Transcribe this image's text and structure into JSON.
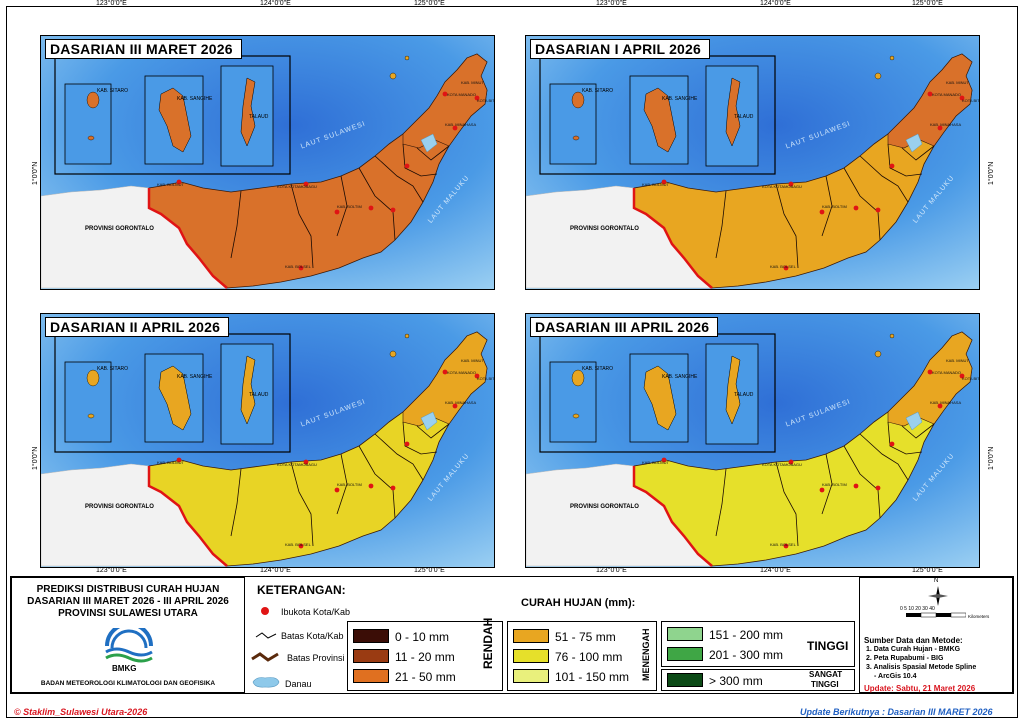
{
  "panels": [
    {
      "title": "DASARIAN III MARET 2026",
      "fill": "#d9712a",
      "fill_east": "#d9712a"
    },
    {
      "title": "DASARIAN I APRIL 2026",
      "fill": "#e8a621",
      "fill_east": "#d9712a"
    },
    {
      "title": "DASARIAN II APRIL 2026",
      "fill": "#e8d425",
      "fill_east": "#e8a621"
    },
    {
      "title": "DASARIAN III APRIL 2026",
      "fill": "#e6e02a",
      "fill_east": "#e8a621"
    }
  ],
  "inset_labels": [
    "KAB. SITARO",
    "KAB. SANGIHE",
    "TALAUD"
  ],
  "map_labels": {
    "laut_sulawesi": "LAUT SULAWESI",
    "laut_maluku": "LAUT MALUKU",
    "gorontalo": "PROVINSI GORONTALO",
    "bolmut": "KAB. BOLMUT",
    "bolsel": "KAB. BOLSEL",
    "boltim": "KAB. BOLTIM",
    "kotamobagu": "KOTA KOTAMOBAGU",
    "manado": "KOTA MANADO",
    "bitung": "KOTA BITUNG",
    "minahasa": "KAB. MINAHASA",
    "minut": "KAB. MINUT"
  },
  "coords": {
    "lon": [
      "123°0'0\"E",
      "124°0'0\"E",
      "125°0'0\"E"
    ],
    "lat": "1°0'0\"N"
  },
  "title_block": {
    "line1": "PREDIKSI DISTRIBUSI CURAH HUJAN",
    "line2": "DASARIAN III MARET 2026 - III APRIL 2026",
    "line3": "PROVINSI SULAWESI UTARA",
    "logo_text": "BMKG",
    "agency": "BADAN METEOROLOGI KLIMATOLOGI DAN GEOFISIKA"
  },
  "legend": {
    "heading": "KETERANGAN:",
    "symbols": [
      "Ibukota Kota/Kab",
      "Batas Kota/Kab",
      "Batas Provinsi",
      "Danau"
    ],
    "rain_heading": "CURAH HUJAN (mm):",
    "groups": {
      "rendah": "RENDAH",
      "menengah": "MENENGAH",
      "tinggi": "TINGGI",
      "sangat_tinggi_1": "SANGAT",
      "sangat_tinggi_2": "TINGGI"
    },
    "classes": [
      {
        "label": "0 - 10 mm",
        "color": "#3b0d06"
      },
      {
        "label": "11 - 20 mm",
        "color": "#9a3b12"
      },
      {
        "label": "21 - 50 mm",
        "color": "#e07020"
      },
      {
        "label": "51 - 75 mm",
        "color": "#e8a621"
      },
      {
        "label": "76 - 100 mm",
        "color": "#e6e02a"
      },
      {
        "label": "101 - 150 mm",
        "color": "#e9f07c"
      },
      {
        "label": "151 - 200 mm",
        "color": "#8fd48e"
      },
      {
        "label": "201 - 300 mm",
        "color": "#3fa645"
      },
      {
        "label": "> 300 mm",
        "color": "#0c4a16"
      }
    ]
  },
  "sources": {
    "heading": "Sumber Data dan Metode:",
    "items": [
      "1. Data Curah Hujan - BMKG",
      "2. Peta Rupabumi - BIG",
      "3. Analisis Spasial Metode Spline",
      "- ArcGis 10.4"
    ],
    "update": "Update: Sabtu, 21 Maret 2026",
    "scale": "0  5 10   20    30    40",
    "scale_unit": "Kilometers",
    "north": "N"
  },
  "footer": {
    "left": "© Staklim_Sulawesi Utara-2026",
    "right": "Update Berikutnya : Dasarian III MARET 2026"
  }
}
